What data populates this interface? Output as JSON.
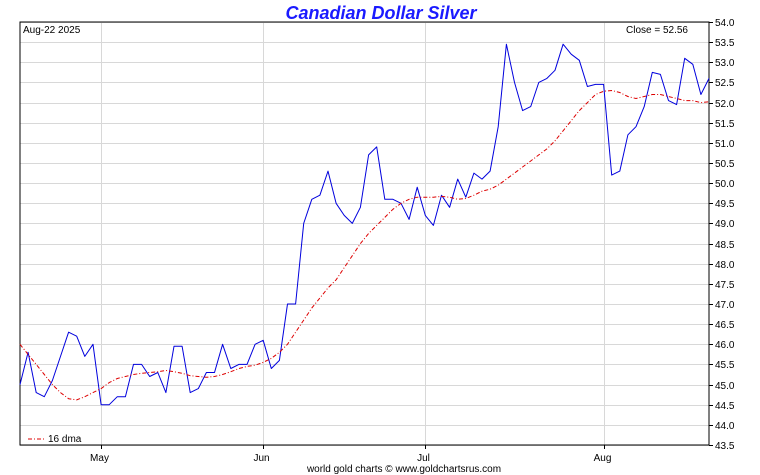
{
  "chart_data": {
    "type": "line",
    "title": "Canadian Dollar Silver",
    "date_label": "Aug-22  2025",
    "close_label": "Close = 52.56",
    "footer": "world gold charts © www.goldchartsrus.com",
    "ylim": [
      43.5,
      54.0
    ],
    "y_ticks": [
      "54.0",
      "53.5",
      "53.0",
      "52.5",
      "52.0",
      "51.5",
      "51.0",
      "50.5",
      "50.0",
      "49.5",
      "49.0",
      "48.5",
      "48.0",
      "47.5",
      "47.0",
      "46.5",
      "46.0",
      "45.5",
      "45.0",
      "44.5",
      "44.0",
      "43.5"
    ],
    "x_ticks": [
      {
        "label": "May",
        "index": 10
      },
      {
        "label": "Jun",
        "index": 30
      },
      {
        "label": "Jul",
        "index": 50
      },
      {
        "label": "Aug",
        "index": 72
      }
    ],
    "n_points": 86,
    "grid": true,
    "legend": {
      "position": "bottom-left",
      "label": "16 dma"
    },
    "colors": {
      "price": "#0000dd",
      "dma": "#dd0000",
      "title": "#1a1aff"
    },
    "series": [
      {
        "name": "",
        "style": "solid",
        "values": [
          45.0,
          45.8,
          44.8,
          44.7,
          45.1,
          45.7,
          46.3,
          46.2,
          45.7,
          46.0,
          44.5,
          44.5,
          44.7,
          44.7,
          45.5,
          45.5,
          45.2,
          45.3,
          44.8,
          45.95,
          45.95,
          44.8,
          44.9,
          45.3,
          45.3,
          46.0,
          45.4,
          45.5,
          45.5,
          46.0,
          46.1,
          45.4,
          45.6,
          47.0,
          47.0,
          49.0,
          49.6,
          49.7,
          50.3,
          49.5,
          49.2,
          49.0,
          49.4,
          50.7,
          50.9,
          49.6,
          49.6,
          49.5,
          49.1,
          49.9,
          49.2,
          48.95,
          49.7,
          49.4,
          50.1,
          49.65,
          50.25,
          50.1,
          50.3,
          51.4,
          53.45,
          52.5,
          51.8,
          51.9,
          52.5,
          52.6,
          52.8,
          53.45,
          53.2,
          53.05,
          52.4,
          52.45,
          52.45,
          50.2,
          50.3,
          51.2,
          51.4,
          51.9,
          52.75,
          52.7,
          52.05,
          51.95,
          53.1,
          52.95,
          52.2,
          52.6
        ]
      },
      {
        "name": "16 dma",
        "style": "dashdot",
        "values": [
          46.0,
          45.75,
          45.5,
          45.25,
          45.0,
          44.8,
          44.65,
          44.62,
          44.7,
          44.8,
          44.9,
          45.05,
          45.15,
          45.2,
          45.25,
          45.28,
          45.3,
          45.32,
          45.35,
          45.32,
          45.28,
          45.22,
          45.2,
          45.18,
          45.2,
          45.25,
          45.32,
          45.4,
          45.45,
          45.48,
          45.55,
          45.65,
          45.8,
          46.0,
          46.3,
          46.6,
          46.9,
          47.15,
          47.4,
          47.6,
          47.9,
          48.2,
          48.5,
          48.75,
          48.95,
          49.15,
          49.35,
          49.5,
          49.6,
          49.65,
          49.65,
          49.65,
          49.67,
          49.65,
          49.6,
          49.62,
          49.7,
          49.8,
          49.85,
          49.95,
          50.1,
          50.25,
          50.4,
          50.55,
          50.7,
          50.85,
          51.05,
          51.3,
          51.55,
          51.8,
          52.0,
          52.2,
          52.28,
          52.3,
          52.25,
          52.15,
          52.1,
          52.15,
          52.2,
          52.2,
          52.15,
          52.1,
          52.05,
          52.05,
          52.0,
          52.02
        ]
      }
    ]
  }
}
